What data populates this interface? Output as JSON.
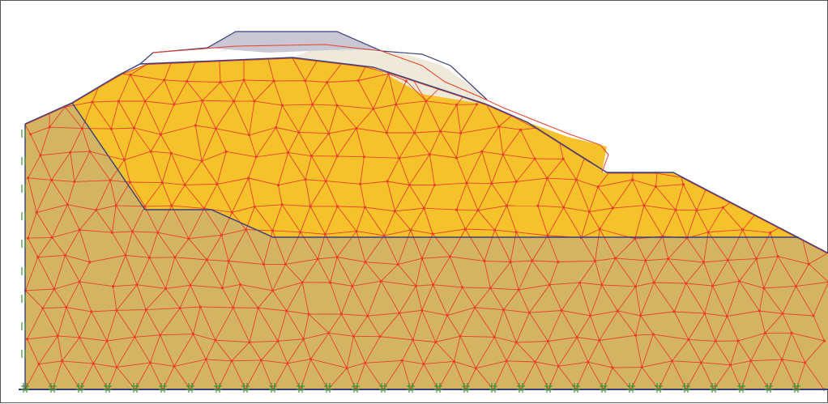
{
  "colors": {
    "background": "#ffffff",
    "frame": "#555555",
    "foundation_soil": "#d3b463",
    "fill_soil": "#f6c22c",
    "mesh_line": "#e8402a",
    "outline": "#3a3f7a",
    "embankment_top": "#c9c7d4",
    "deformed_light": "#efe9d9",
    "fixity": "#3f8f3a"
  },
  "icons": {
    "fixity_marker": "double-hatch-fixity-icon"
  }
}
